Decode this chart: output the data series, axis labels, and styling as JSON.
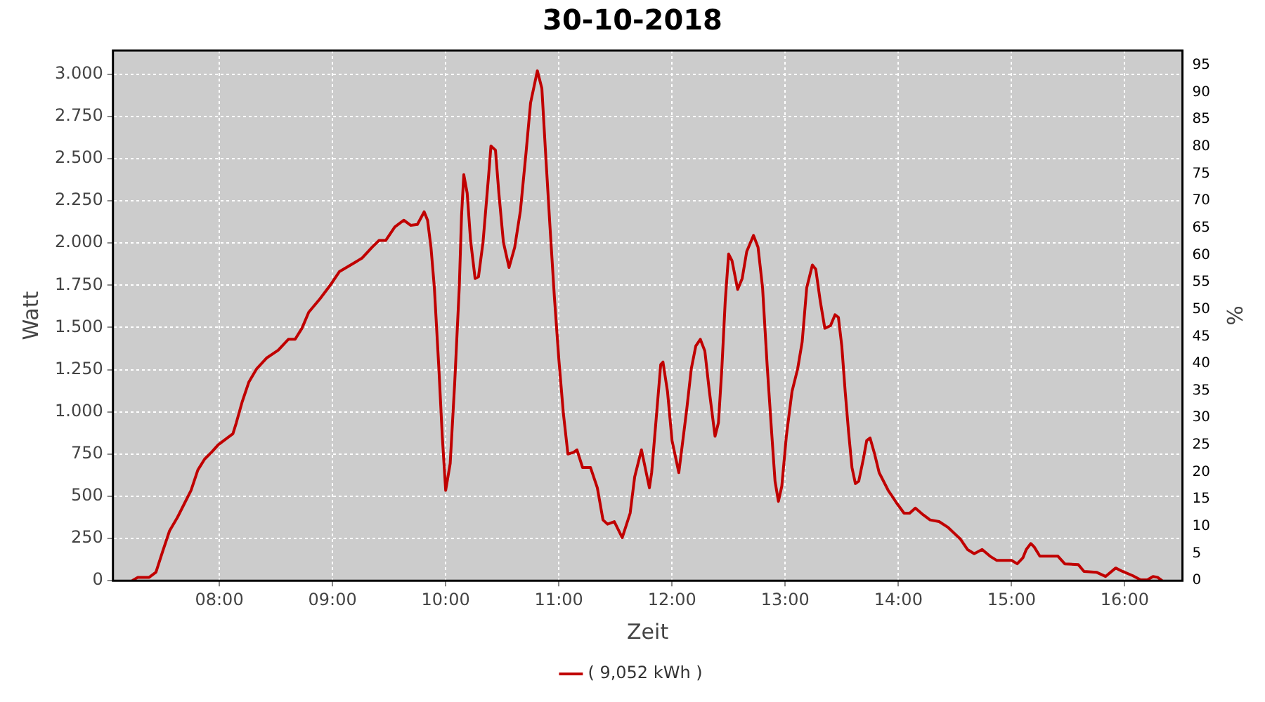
{
  "chart_data": {
    "type": "line",
    "title": "30-10-2018",
    "xlabel": "Zeit",
    "ylabel": "Watt",
    "y2label": "%",
    "xlim": [
      7.06,
      16.51
    ],
    "ylim": [
      0,
      3140
    ],
    "y2lim": [
      0,
      97.7
    ],
    "xticks": [
      {
        "value": 8,
        "label": "08:00"
      },
      {
        "value": 9,
        "label": "09:00"
      },
      {
        "value": 10,
        "label": "10:00"
      },
      {
        "value": 11,
        "label": "11:00"
      },
      {
        "value": 12,
        "label": "12:00"
      },
      {
        "value": 13,
        "label": "13:00"
      },
      {
        "value": 14,
        "label": "14:00"
      },
      {
        "value": 15,
        "label": "15:00"
      },
      {
        "value": 16,
        "label": "16:00"
      }
    ],
    "yticks": [
      0,
      {
        "value": 250,
        "label": "250"
      },
      {
        "value": 500,
        "label": "500"
      },
      {
        "value": 750,
        "label": "750"
      },
      {
        "value": 1000,
        "label": "1.000"
      },
      {
        "value": 1250,
        "label": "1.250"
      },
      {
        "value": 1500,
        "label": "1.500"
      },
      {
        "value": 1750,
        "label": "1.750"
      },
      {
        "value": 2000,
        "label": "2.000"
      },
      {
        "value": 2250,
        "label": "2.250"
      },
      {
        "value": 2500,
        "label": "2.500"
      },
      {
        "value": 2750,
        "label": "2.750"
      },
      {
        "value": 3000,
        "label": "3.000"
      }
    ],
    "y2ticks": [
      0,
      5,
      10,
      15,
      20,
      25,
      30,
      35,
      40,
      45,
      50,
      55,
      60,
      65,
      70,
      75,
      80,
      85,
      90,
      95
    ],
    "grid": true,
    "legend": "bottom",
    "marker": "none",
    "line_style": "solid",
    "series": [
      {
        "name": "( 9,052 kWh )",
        "color": "#c00000",
        "x": [
          7.23,
          7.28,
          7.38,
          7.44,
          7.5,
          7.56,
          7.63,
          7.69,
          7.75,
          7.81,
          7.87,
          7.93,
          7.99,
          8.06,
          8.12,
          8.15,
          8.2,
          8.26,
          8.33,
          8.42,
          8.52,
          8.61,
          8.67,
          8.73,
          8.79,
          8.89,
          8.98,
          9.06,
          9.16,
          9.26,
          9.35,
          9.41,
          9.47,
          9.55,
          9.63,
          9.69,
          9.75,
          9.81,
          9.84,
          9.87,
          9.9,
          9.94,
          9.97,
          10.0,
          10.04,
          10.08,
          10.12,
          10.14,
          10.16,
          10.19,
          10.22,
          10.26,
          10.29,
          10.33,
          10.38,
          10.4,
          10.44,
          10.47,
          10.51,
          10.56,
          10.61,
          10.66,
          10.71,
          10.75,
          10.81,
          10.85,
          10.88,
          10.92,
          10.96,
          11.0,
          11.04,
          11.08,
          11.13,
          11.16,
          11.21,
          11.28,
          11.34,
          11.39,
          11.43,
          11.49,
          11.56,
          11.63,
          11.67,
          11.73,
          11.8,
          11.82,
          11.86,
          11.9,
          11.92,
          11.96,
          12.0,
          12.06,
          12.13,
          12.17,
          12.21,
          12.25,
          12.29,
          12.33,
          12.38,
          12.41,
          12.44,
          12.47,
          12.5,
          12.53,
          12.58,
          12.62,
          12.66,
          12.72,
          12.76,
          12.8,
          12.84,
          12.88,
          12.91,
          12.94,
          12.97,
          13.01,
          13.06,
          13.11,
          13.15,
          13.19,
          13.24,
          13.27,
          13.31,
          13.35,
          13.4,
          13.44,
          13.47,
          13.5,
          13.53,
          13.56,
          13.59,
          13.62,
          13.65,
          13.69,
          13.72,
          13.75,
          13.79,
          13.83,
          13.91,
          13.99,
          14.05,
          14.1,
          14.15,
          14.22,
          14.28,
          14.36,
          14.44,
          14.55,
          14.61,
          14.67,
          14.74,
          14.81,
          14.87,
          15.0,
          15.05,
          15.1,
          15.13,
          15.17,
          15.2,
          15.25,
          15.41,
          15.47,
          15.59,
          15.64,
          15.75,
          15.83,
          15.92,
          15.98,
          16.07,
          16.14,
          16.2,
          16.25,
          16.29,
          16.33
        ],
        "values": [
          0,
          20,
          20,
          50,
          175,
          295,
          375,
          455,
          535,
          655,
          720,
          760,
          805,
          840,
          870,
          935,
          1055,
          1175,
          1255,
          1320,
          1365,
          1430,
          1430,
          1495,
          1590,
          1670,
          1750,
          1830,
          1870,
          1910,
          1975,
          2015,
          2015,
          2095,
          2135,
          2105,
          2110,
          2185,
          2135,
          1975,
          1735,
          1255,
          855,
          535,
          695,
          1175,
          1735,
          2160,
          2405,
          2295,
          2015,
          1790,
          1800,
          2005,
          2405,
          2575,
          2550,
          2295,
          2005,
          1855,
          1975,
          2190,
          2535,
          2830,
          3020,
          2915,
          2565,
          2115,
          1685,
          1310,
          990,
          750,
          760,
          775,
          670,
          670,
          550,
          360,
          335,
          350,
          255,
          400,
          615,
          775,
          550,
          640,
          960,
          1280,
          1295,
          1120,
          830,
          640,
          1015,
          1255,
          1390,
          1430,
          1360,
          1120,
          855,
          935,
          1255,
          1655,
          1935,
          1895,
          1725,
          1790,
          1950,
          2045,
          1975,
          1735,
          1280,
          880,
          590,
          470,
          560,
          855,
          1120,
          1255,
          1415,
          1735,
          1870,
          1845,
          1655,
          1495,
          1510,
          1575,
          1560,
          1390,
          1120,
          880,
          670,
          575,
          590,
          720,
          830,
          845,
          750,
          640,
          535,
          455,
          400,
          400,
          430,
          390,
          360,
          350,
          315,
          245,
          185,
          160,
          185,
          145,
          120,
          120,
          100,
          135,
          185,
          220,
          200,
          145,
          145,
          100,
          95,
          55,
          50,
          25,
          75,
          55,
          30,
          5,
          5,
          25,
          20,
          0
        ]
      }
    ]
  }
}
